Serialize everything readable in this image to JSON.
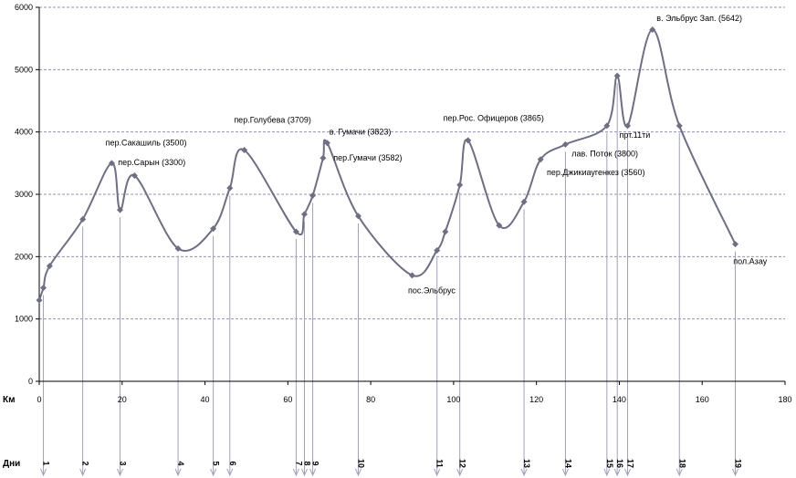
{
  "chart_data": {
    "type": "line",
    "xlim": [
      0,
      180
    ],
    "ylim": [
      0,
      6000
    ],
    "x_ticks": [
      "0",
      "20",
      "40",
      "60",
      "80",
      "100",
      "120",
      "140",
      "160",
      "180"
    ],
    "y_ticks": [
      "0",
      "1000",
      "2000",
      "3000",
      "4000",
      "5000",
      "6000"
    ],
    "xlabel": "Км",
    "day_axis_label": "Дни",
    "grid": "horizontal dashed",
    "colors": {
      "line": "#6e6e84",
      "marker": "#6e6e84",
      "grid": "#9090b8",
      "dropline": "#a0a0c0"
    },
    "series": [
      {
        "points": [
          {
            "x": 0,
            "y": 1300
          },
          {
            "x": 1,
            "y": 1500
          },
          {
            "x": 2.5,
            "y": 1850
          },
          {
            "x": 10.5,
            "y": 2600
          },
          {
            "x": 17.5,
            "y": 3500
          },
          {
            "x": 19.5,
            "y": 2750
          },
          {
            "x": 23,
            "y": 3300
          },
          {
            "x": 33.5,
            "y": 2130
          },
          {
            "x": 42,
            "y": 2450
          },
          {
            "x": 46,
            "y": 3100
          },
          {
            "x": 49.5,
            "y": 3709
          },
          {
            "x": 62,
            "y": 2400
          },
          {
            "x": 64,
            "y": 2680
          },
          {
            "x": 66,
            "y": 2980
          },
          {
            "x": 68.5,
            "y": 3582
          },
          {
            "x": 69.5,
            "y": 3823
          },
          {
            "x": 77,
            "y": 2650
          },
          {
            "x": 90,
            "y": 1700
          },
          {
            "x": 96,
            "y": 2100
          },
          {
            "x": 98,
            "y": 2400
          },
          {
            "x": 101.5,
            "y": 3150
          },
          {
            "x": 103.5,
            "y": 3865
          },
          {
            "x": 111,
            "y": 2500
          },
          {
            "x": 117,
            "y": 2880
          },
          {
            "x": 121,
            "y": 3560
          },
          {
            "x": 127,
            "y": 3800
          },
          {
            "x": 137,
            "y": 4100
          },
          {
            "x": 139.5,
            "y": 4900
          },
          {
            "x": 142,
            "y": 4100
          },
          {
            "x": 148,
            "y": 5642
          },
          {
            "x": 154.5,
            "y": 4100
          },
          {
            "x": 168,
            "y": 2200
          }
        ]
      }
    ],
    "annotations": [
      {
        "text": "пер.Сакашиль (3500)",
        "x": 16,
        "y": 3780
      },
      {
        "text": "пер.Сарын (3300)",
        "x": 19,
        "y": 3470
      },
      {
        "text": "пер.Голубева (3709)",
        "x": 47,
        "y": 4150
      },
      {
        "text": "в. Гумачи (3823)",
        "x": 70,
        "y": 3960
      },
      {
        "text": "пер.Гумачи (3582)",
        "x": 71,
        "y": 3540
      },
      {
        "text": "пос.Эльбрус",
        "x": 89,
        "y": 1410
      },
      {
        "text": "пер.Рос. Офицеров (3865)",
        "x": 97.5,
        "y": 4180
      },
      {
        "text": "в. Эльбрус Зап. (5642)",
        "x": 149,
        "y": 5780
      },
      {
        "text": "прт.11ти",
        "x": 140,
        "y": 3910
      },
      {
        "text": "лав. Поток (3800)",
        "x": 128.5,
        "y": 3610
      },
      {
        "text": "пер.Джикиаугенкез (3560)",
        "x": 122.5,
        "y": 3310
      },
      {
        "text": "пол.Азау",
        "x": 167.5,
        "y": 1880
      }
    ],
    "day_markers": [
      {
        "x": 1,
        "label": "1"
      },
      {
        "x": 10.5,
        "label": "2"
      },
      {
        "x": 19.5,
        "label": "3"
      },
      {
        "x": 33.5,
        "label": "4"
      },
      {
        "x": 42,
        "label": "5"
      },
      {
        "x": 46,
        "label": "6"
      },
      {
        "x": 62,
        "label": "7"
      },
      {
        "x": 64,
        "label": "8"
      },
      {
        "x": 66,
        "label": "9"
      },
      {
        "x": 77,
        "label": "10"
      },
      {
        "x": 96,
        "label": "11"
      },
      {
        "x": 101.5,
        "label": "12"
      },
      {
        "x": 117,
        "label": "13"
      },
      {
        "x": 127,
        "label": "14"
      },
      {
        "x": 137,
        "label": "15"
      },
      {
        "x": 139.5,
        "label": "16"
      },
      {
        "x": 142,
        "label": "17"
      },
      {
        "x": 154.5,
        "label": "18"
      },
      {
        "x": 168,
        "label": "19"
      }
    ]
  }
}
